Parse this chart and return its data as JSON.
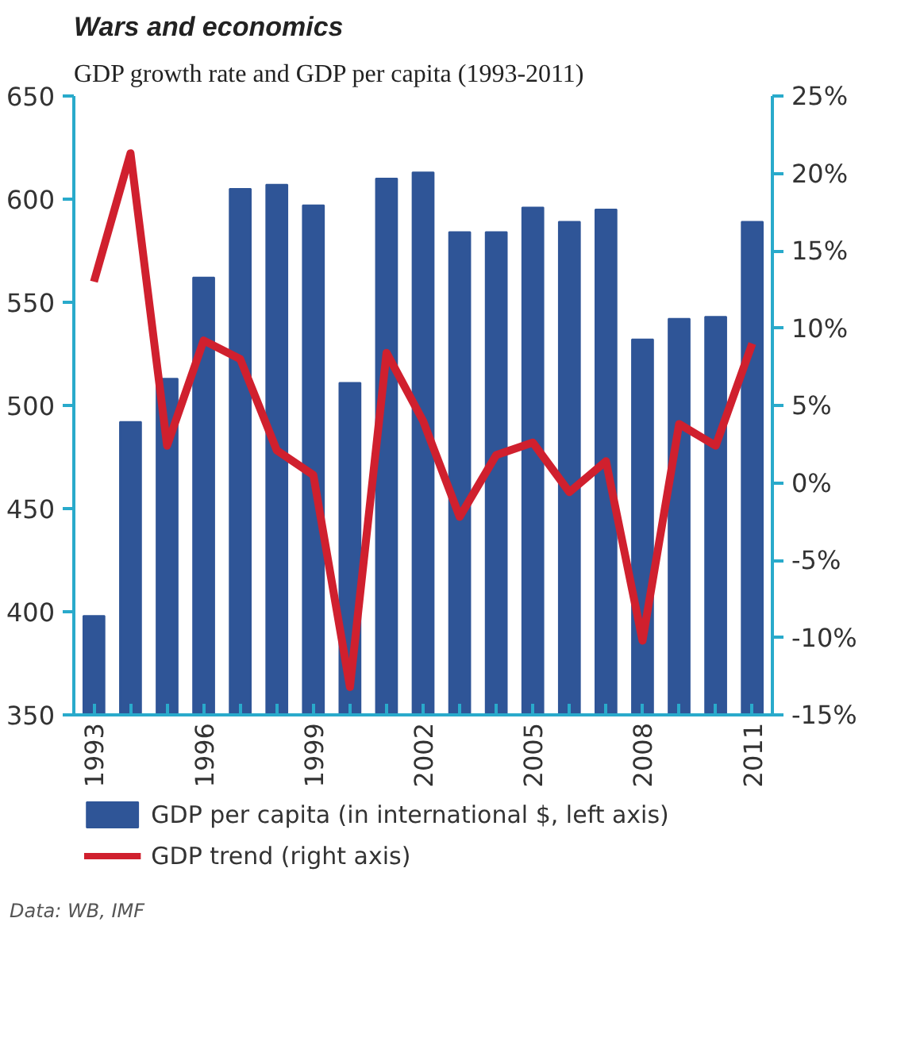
{
  "chart_data": {
    "type": "bar",
    "title": "Wars and economics",
    "subtitle": "GDP growth rate and GDP per capita (1993-2011)",
    "x": [
      1993,
      1994,
      1995,
      1996,
      1997,
      1998,
      1999,
      2000,
      2001,
      2002,
      2003,
      2004,
      2005,
      2006,
      2007,
      2008,
      2009,
      2010,
      2011
    ],
    "series": [
      {
        "name": "GDP per capita (in international $, left axis)",
        "color": "#2f5597",
        "values": [
          398,
          492,
          513,
          562,
          605,
          607,
          597,
          511,
          610,
          613,
          584,
          584,
          596,
          589,
          595,
          532,
          542,
          543,
          589
        ]
      },
      {
        "name": "GDP trend (right axis)",
        "type": "line",
        "axis": "y2",
        "color": "#d0202e",
        "values": [
          13,
          21.3,
          2.4,
          9.2,
          8,
          2.1,
          0.5,
          -13.2,
          8.4,
          4,
          -2.2,
          1.8,
          2.6,
          -0.6,
          1.4,
          -10.2,
          3.8,
          2.4,
          9
        ]
      }
    ],
    "xlim": [
      1992.45,
      2011.55
    ],
    "xticks": [
      1993,
      {
        "value": 1994,
        "label": null
      },
      {
        "value": 1995,
        "label": null
      },
      1996,
      {
        "value": 1997,
        "label": null
      },
      {
        "value": 1998,
        "label": null
      },
      1999,
      {
        "value": 2000,
        "label": null
      },
      {
        "value": 2001,
        "label": null
      },
      2002,
      {
        "value": 2003,
        "label": null
      },
      {
        "value": 2004,
        "label": null
      },
      2005,
      {
        "value": 2006,
        "label": null
      },
      {
        "value": 2007,
        "label": null
      },
      2008,
      {
        "value": 2009,
        "label": null
      },
      {
        "value": 2010,
        "label": null
      },
      2011
    ],
    "ylim": [
      350,
      650
    ],
    "yticks": [
      350,
      400,
      450,
      500,
      550,
      600,
      650
    ],
    "y2lim": [
      -15,
      25
    ],
    "y2ticks": [
      {
        "value": -15,
        "label": "-15%"
      },
      {
        "value": -10,
        "label": "-10%"
      },
      {
        "value": -5,
        "label": "-5%"
      },
      {
        "value": 0,
        "label": "0%"
      },
      {
        "value": 5,
        "label": "5%"
      },
      {
        "value": 10,
        "label": "10%"
      },
      {
        "value": 15,
        "label": "15%"
      },
      {
        "value": 20,
        "label": "20%"
      },
      {
        "value": 25,
        "label": "25%"
      }
    ],
    "grid": false,
    "legend": "bottom",
    "annotations": [
      "Data: WB, IMF"
    ]
  }
}
